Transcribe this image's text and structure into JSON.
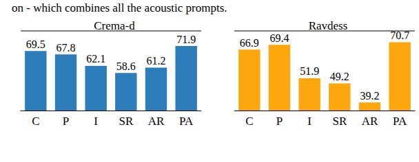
{
  "header": {
    "text": "on - which combines all the acoustic prompts."
  },
  "chart_data": [
    {
      "type": "bar",
      "title": "Crema-d",
      "categories": [
        "C",
        "P",
        "I",
        "SR",
        "AR",
        "PA"
      ],
      "values": [
        69.5,
        67.8,
        62.1,
        58.6,
        61.2,
        71.9
      ],
      "color": "#2e7dbb",
      "ylim": [
        40,
        75
      ],
      "data_labels": true,
      "tick_labels": "x",
      "grid": false
    },
    {
      "type": "bar",
      "title": "Ravdess",
      "categories": [
        "C",
        "P",
        "I",
        "SR",
        "AR",
        "PA"
      ],
      "values": [
        66.9,
        69.4,
        51.9,
        49.2,
        39.2,
        70.7
      ],
      "color": "#fda70f",
      "ylim": [
        35,
        72
      ],
      "data_labels": true,
      "tick_labels": "x",
      "grid": false
    }
  ]
}
